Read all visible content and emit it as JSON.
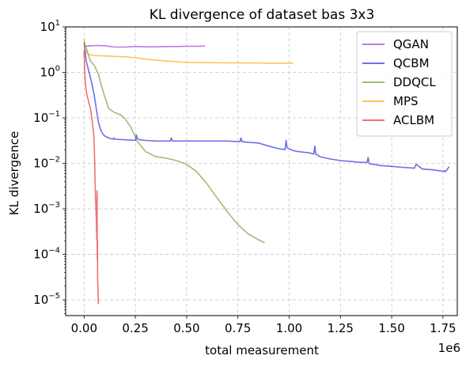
{
  "chart_data": {
    "type": "line",
    "title": "KL divergence of dataset bas 3x3",
    "xlabel": "total measurement",
    "ylabel": "KL divergence",
    "x_scale_label": "1e6",
    "y_scale": "log",
    "xlim": [
      -0.09,
      1.82
    ],
    "ylim": [
      4.5e-06,
      10
    ],
    "x_ticks": [
      0.0,
      0.25,
      0.5,
      0.75,
      1.0,
      1.25,
      1.5,
      1.75
    ],
    "x_tick_labels": [
      "0.00",
      "0.25",
      "0.50",
      "0.75",
      "1.00",
      "1.25",
      "1.50",
      "1.75"
    ],
    "y_ticks": [
      {
        "exp": 1,
        "value": 10
      },
      {
        "exp": 0,
        "value": 1
      },
      {
        "exp": -1,
        "value": 0.1
      },
      {
        "exp": -2,
        "value": 0.01
      },
      {
        "exp": -3,
        "value": 0.001
      },
      {
        "exp": -4,
        "value": 0.0001
      },
      {
        "exp": -5,
        "value": 1e-05
      }
    ],
    "y_tick_base": "10",
    "grid": true,
    "legend_position": "top-right",
    "series": [
      {
        "name": "QGAN",
        "color": "#9b30d9",
        "x": [
          0.0,
          0.02,
          0.06,
          0.1,
          0.15,
          0.2,
          0.25,
          0.3,
          0.35,
          0.4,
          0.45,
          0.5,
          0.55,
          0.59
        ],
        "y": [
          3.7,
          3.8,
          3.9,
          3.85,
          3.6,
          3.6,
          3.7,
          3.65,
          3.65,
          3.7,
          3.7,
          3.75,
          3.75,
          3.8
        ]
      },
      {
        "name": "QCBM",
        "color": "#2222dd",
        "x": [
          0.0,
          0.005,
          0.01,
          0.02,
          0.03,
          0.04,
          0.05,
          0.06,
          0.07,
          0.08,
          0.09,
          0.1,
          0.12,
          0.14,
          0.145,
          0.15,
          0.2,
          0.25,
          0.255,
          0.26,
          0.27,
          0.3,
          0.35,
          0.4,
          0.42,
          0.425,
          0.43,
          0.5,
          0.55,
          0.6,
          0.65,
          0.7,
          0.75,
          0.76,
          0.765,
          0.77,
          0.8,
          0.85,
          0.9,
          0.95,
          0.98,
          0.985,
          0.99,
          1.02,
          1.05,
          1.1,
          1.12,
          1.125,
          1.13,
          1.15,
          1.2,
          1.25,
          1.3,
          1.35,
          1.38,
          1.385,
          1.39,
          1.42,
          1.45,
          1.5,
          1.55,
          1.6,
          1.61,
          1.62,
          1.65,
          1.7,
          1.74,
          1.75,
          1.755,
          1.76,
          1.77,
          1.78
        ],
        "y": [
          4.5,
          2.8,
          1.8,
          1.2,
          0.8,
          0.5,
          0.3,
          0.15,
          0.08,
          0.055,
          0.045,
          0.04,
          0.036,
          0.034,
          0.036,
          0.034,
          0.033,
          0.032,
          0.042,
          0.035,
          0.033,
          0.032,
          0.031,
          0.031,
          0.031,
          0.036,
          0.031,
          0.031,
          0.031,
          0.031,
          0.031,
          0.031,
          0.03,
          0.03,
          0.036,
          0.03,
          0.029,
          0.028,
          0.024,
          0.021,
          0.02,
          0.032,
          0.022,
          0.019,
          0.018,
          0.017,
          0.016,
          0.024,
          0.016,
          0.014,
          0.0125,
          0.0115,
          0.011,
          0.0105,
          0.0105,
          0.0135,
          0.0098,
          0.0094,
          0.0089,
          0.0086,
          0.0082,
          0.0079,
          0.0078,
          0.0095,
          0.0075,
          0.0072,
          0.0068,
          0.0067,
          0.0069,
          0.0065,
          0.0072,
          0.0085
        ]
      },
      {
        "name": "DDQCL",
        "color": "#6b9a2e",
        "x": [
          0.0,
          0.01,
          0.02,
          0.03,
          0.05,
          0.07,
          0.08,
          0.1,
          0.12,
          0.15,
          0.18,
          0.2,
          0.23,
          0.26,
          0.3,
          0.35,
          0.4,
          0.45,
          0.5,
          0.55,
          0.6,
          0.65,
          0.7,
          0.75,
          0.8,
          0.85,
          0.88
        ],
        "y": [
          4.8,
          3.5,
          2.5,
          1.8,
          1.4,
          0.9,
          0.6,
          0.3,
          0.16,
          0.13,
          0.115,
          0.095,
          0.06,
          0.03,
          0.018,
          0.014,
          0.013,
          0.0115,
          0.0095,
          0.0065,
          0.0035,
          0.0017,
          0.00085,
          0.00045,
          0.00028,
          0.00021,
          0.00018
        ]
      },
      {
        "name": "MPS",
        "color": "#ffa500",
        "x": [
          0.0,
          0.005,
          0.01,
          0.02,
          0.05,
          0.1,
          0.15,
          0.2,
          0.25,
          0.3,
          0.35,
          0.4,
          0.45,
          0.5,
          0.6,
          0.7,
          0.8,
          0.9,
          1.0,
          1.02
        ],
        "y": [
          5.5,
          3.5,
          2.8,
          2.5,
          2.35,
          2.3,
          2.25,
          2.2,
          2.1,
          1.95,
          1.85,
          1.78,
          1.72,
          1.66,
          1.64,
          1.62,
          1.61,
          1.6,
          1.6,
          1.6
        ]
      },
      {
        "name": "ACLBM",
        "color": "#e8232a",
        "x": [
          0.0,
          0.003,
          0.006,
          0.01,
          0.015,
          0.02,
          0.025,
          0.03,
          0.035,
          0.04,
          0.045,
          0.048,
          0.05,
          0.052,
          0.055,
          0.058,
          0.06,
          0.062,
          0.063,
          0.064,
          0.065,
          0.066,
          0.067,
          0.068,
          0.069,
          0.07
        ],
        "y": [
          3.0,
          1.0,
          0.6,
          0.4,
          0.3,
          0.25,
          0.2,
          0.17,
          0.12,
          0.08,
          0.05,
          0.035,
          0.02,
          0.008,
          0.002,
          0.0009,
          0.0004,
          0.0002,
          0.0025,
          8e-05,
          0.0002,
          3e-05,
          2e-05,
          1.5e-05,
          1e-05,
          8e-06
        ]
      }
    ]
  }
}
